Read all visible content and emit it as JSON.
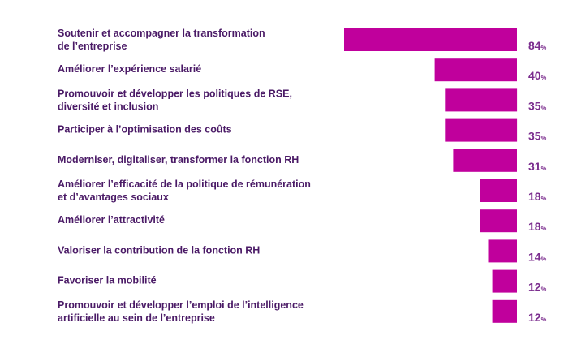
{
  "chart_data": {
    "type": "bar",
    "orientation": "horizontal",
    "categories": [
      [
        "Soutenir et accompagner la transformation",
        "de l’entreprise"
      ],
      [
        "Améliorer l’expérience salarié"
      ],
      [
        "Promouvoir et développer les politiques de RSE,",
        "diversité et inclusion"
      ],
      [
        "Participer à l’optimisation des coûts"
      ],
      [
        "Moderniser, digitaliser, transformer la fonction RH"
      ],
      [
        "Améliorer l’efficacité de la politique de rémunération",
        "et d’avantages sociaux"
      ],
      [
        "Améliorer l’attractivité"
      ],
      [
        "Valoriser la contribution de la fonction RH"
      ],
      [
        "Favoriser la mobilité"
      ],
      [
        "Promouvoir et développer l’emploi de l’intelligence",
        "artificielle au sein de l’entreprise"
      ]
    ],
    "values": [
      84,
      40,
      35,
      35,
      31,
      18,
      18,
      14,
      12,
      12
    ],
    "unit": "%",
    "xlim": [
      0,
      84
    ],
    "bar_color": "#c0009c",
    "label_color": "#4a1a66",
    "value_color": "#7b2d8e",
    "bar_alignment": "right",
    "grid": false,
    "legend": "none"
  }
}
